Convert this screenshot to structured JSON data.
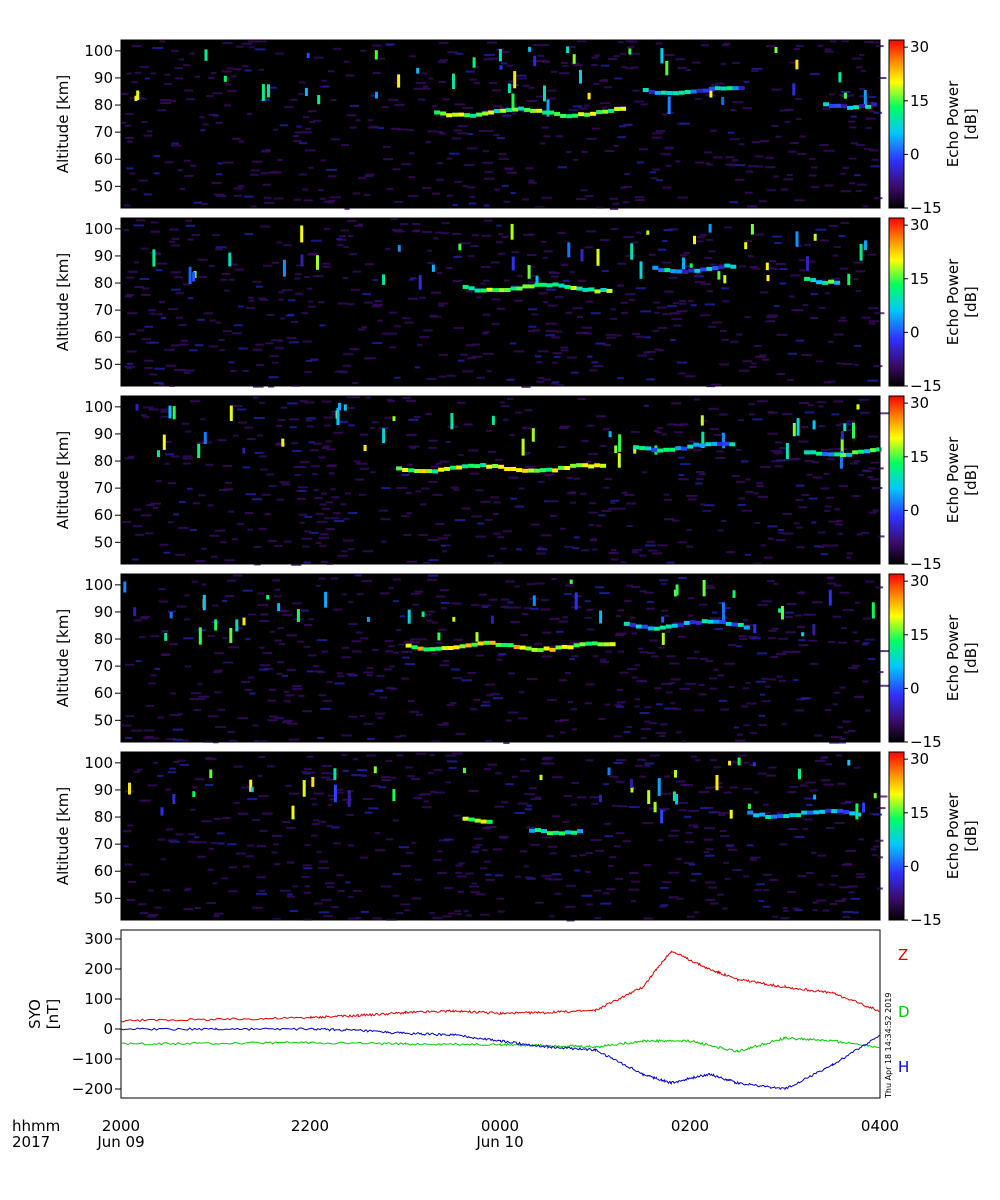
{
  "chart_data": [
    {
      "type": "heatmap",
      "panel": 1,
      "ylabel": "Altitude [km]",
      "y_ticks": [
        50,
        60,
        70,
        80,
        90,
        100
      ],
      "ylim": [
        42,
        104
      ],
      "xlim_hours": [
        0,
        8
      ],
      "colorbar": {
        "label": "Echo Power [dB]",
        "ticks": [
          "30",
          "15",
          "0",
          "−15"
        ],
        "range": [
          -15,
          32
        ]
      },
      "echo_layers": [
        {
          "x0": 3.3,
          "x1": 5.3,
          "alt": 78,
          "power": 10
        },
        {
          "x0": 5.5,
          "x1": 6.6,
          "alt": 86,
          "power": 0
        },
        {
          "x0": 7.4,
          "x1": 8.0,
          "alt": 81,
          "power": 0
        }
      ]
    },
    {
      "type": "heatmap",
      "panel": 2,
      "ylabel": "Altitude [km]",
      "y_ticks": [
        50,
        60,
        70,
        80,
        90,
        100
      ],
      "ylim": [
        42,
        104
      ],
      "xlim_hours": [
        0,
        8
      ],
      "colorbar": {
        "label": "Echo Power [dB]",
        "ticks": [
          "30",
          "15",
          "0",
          "−15"
        ],
        "range": [
          -15,
          32
        ]
      },
      "echo_layers": [
        {
          "x0": 3.6,
          "x1": 5.2,
          "alt": 79,
          "power": 10
        },
        {
          "x0": 5.6,
          "x1": 6.5,
          "alt": 86,
          "power": 0
        },
        {
          "x0": 7.2,
          "x1": 7.6,
          "alt": 82,
          "power": 5
        }
      ]
    },
    {
      "type": "heatmap",
      "panel": 3,
      "ylabel": "Altitude [km]",
      "y_ticks": [
        50,
        60,
        70,
        80,
        90,
        100
      ],
      "ylim": [
        42,
        104
      ],
      "xlim_hours": [
        0,
        8
      ],
      "colorbar": {
        "label": "Echo Power [dB]",
        "ticks": [
          "30",
          "15",
          "0",
          "−15"
        ],
        "range": [
          -15,
          32
        ]
      },
      "echo_layers": [
        {
          "x0": 2.9,
          "x1": 5.1,
          "alt": 78,
          "power": 12
        },
        {
          "x0": 5.4,
          "x1": 6.5,
          "alt": 86,
          "power": 2
        },
        {
          "x0": 7.2,
          "x1": 8.0,
          "alt": 84,
          "power": 5
        }
      ]
    },
    {
      "type": "heatmap",
      "panel": 4,
      "ylabel": "Altitude [km]",
      "y_ticks": [
        50,
        60,
        70,
        80,
        90,
        100
      ],
      "ylim": [
        42,
        104
      ],
      "xlim_hours": [
        0,
        8
      ],
      "colorbar": {
        "label": "Echo Power [dB]",
        "ticks": [
          "30",
          "15",
          "0",
          "−15"
        ],
        "range": [
          -15,
          32
        ]
      },
      "echo_layers": [
        {
          "x0": 3.0,
          "x1": 5.2,
          "alt": 78,
          "power": 15
        },
        {
          "x0": 5.3,
          "x1": 6.6,
          "alt": 86,
          "power": 0
        }
      ]
    },
    {
      "type": "heatmap",
      "panel": 5,
      "ylabel": "Altitude [km]",
      "y_ticks": [
        50,
        60,
        70,
        80,
        90,
        100
      ],
      "ylim": [
        42,
        104
      ],
      "xlim_hours": [
        0,
        8
      ],
      "colorbar": {
        "label": "Echo Power [dB]",
        "ticks": [
          "30",
          "15",
          "0",
          "−15"
        ],
        "range": [
          -15,
          32
        ]
      },
      "echo_layers": [
        {
          "x0": 3.6,
          "x1": 3.9,
          "alt": 80,
          "power": 12
        },
        {
          "x0": 4.3,
          "x1": 4.9,
          "alt": 76,
          "power": 5
        },
        {
          "x0": 6.6,
          "x1": 7.8,
          "alt": 82,
          "power": 0
        }
      ]
    },
    {
      "type": "line",
      "panel": 6,
      "ylabel": "SYO [nT]",
      "y_ticks": [
        300,
        200,
        100,
        0,
        -100,
        -200
      ],
      "ylim": [
        -230,
        330
      ],
      "xlim_hours": [
        0,
        8
      ],
      "series": [
        {
          "name": "Z",
          "color": "#e00000",
          "x": [
            0,
            1,
            2,
            2.5,
            3,
            3.5,
            4,
            4.5,
            5,
            5.5,
            5.8,
            6.2,
            6.5,
            7,
            7.5,
            8
          ],
          "y": [
            28,
            32,
            38,
            45,
            55,
            60,
            52,
            55,
            62,
            140,
            260,
            200,
            165,
            140,
            120,
            60
          ]
        },
        {
          "name": "D",
          "color": "#00cc00",
          "x": [
            0,
            1,
            2,
            3,
            4,
            4.5,
            5,
            5.5,
            6,
            6.5,
            7,
            7.5,
            8
          ],
          "y": [
            -50,
            -48,
            -45,
            -50,
            -52,
            -55,
            -60,
            -40,
            -40,
            -75,
            -30,
            -40,
            -60
          ]
        },
        {
          "name": "H",
          "color": "#0000cc",
          "x": [
            0,
            1,
            2,
            2.5,
            3,
            3.5,
            4,
            4.5,
            5,
            5.5,
            5.8,
            6.2,
            6.5,
            7,
            7.5,
            8
          ],
          "y": [
            0,
            0,
            0,
            -5,
            -15,
            -20,
            -40,
            -60,
            -70,
            -150,
            -180,
            -150,
            -180,
            -200,
            -120,
            -20
          ]
        }
      ]
    }
  ],
  "x_axis": {
    "row1": [
      "hhmm",
      "2000",
      "2200",
      "0000",
      "0200",
      "0400"
    ],
    "row2": [
      "2017",
      "Jun 09",
      "Jun 10"
    ]
  },
  "timestamp": "Thu Apr 18 14:34:52 2019"
}
